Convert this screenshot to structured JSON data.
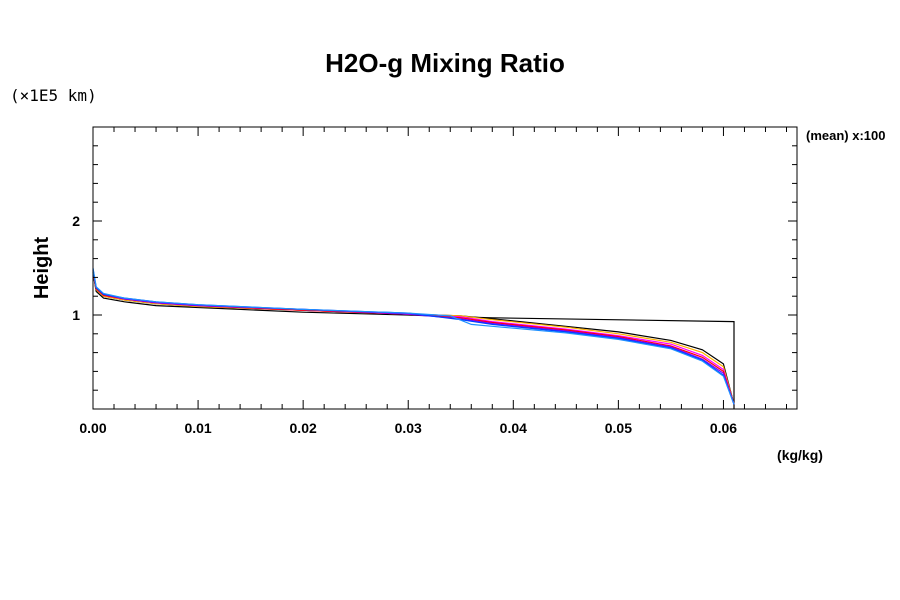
{
  "chart_data": {
    "type": "line",
    "title": "H2O-g Mixing Ratio",
    "ylabel": "Height",
    "yscale_note": "(×1E5 km)",
    "xunit": "(kg/kg)",
    "annotation": "(mean) x:100",
    "xlim": [
      0.0,
      0.067
    ],
    "ylim": [
      0.0,
      3.0
    ],
    "xticks": [
      "0.00",
      "0.01",
      "0.02",
      "0.03",
      "0.04",
      "0.05",
      "0.06"
    ],
    "yticks": [
      "1",
      "2"
    ],
    "grid": false,
    "series_count_note": "ensemble of profiles",
    "reference_profile": {
      "color": "#000000",
      "x": [
        0.0,
        0.0003,
        0.001,
        0.003,
        0.006,
        0.01,
        0.02,
        0.03,
        0.035,
        0.038,
        0.061,
        0.061
      ],
      "y": [
        1.45,
        1.25,
        1.18,
        1.14,
        1.1,
        1.08,
        1.03,
        1.0,
        0.98,
        0.97,
        0.93,
        0.0
      ]
    },
    "series": [
      {
        "color": "#000000",
        "x": [
          0.0,
          0.0003,
          0.001,
          0.003,
          0.006,
          0.01,
          0.02,
          0.03,
          0.035,
          0.038,
          0.045,
          0.05,
          0.055,
          0.058,
          0.06,
          0.061
        ],
        "y": [
          1.45,
          1.27,
          1.2,
          1.16,
          1.12,
          1.09,
          1.05,
          1.01,
          0.99,
          0.96,
          0.88,
          0.82,
          0.73,
          0.63,
          0.48,
          0.05
        ]
      },
      {
        "color": "#ffb000",
        "x": [
          0.0,
          0.0003,
          0.001,
          0.003,
          0.006,
          0.01,
          0.02,
          0.03,
          0.035,
          0.038,
          0.045,
          0.05,
          0.055,
          0.058,
          0.06,
          0.061
        ],
        "y": [
          1.46,
          1.27,
          1.2,
          1.16,
          1.12,
          1.09,
          1.05,
          1.01,
          0.99,
          0.95,
          0.87,
          0.8,
          0.71,
          0.6,
          0.45,
          0.05
        ]
      },
      {
        "color": "#ff00ff",
        "x": [
          0.0,
          0.0003,
          0.001,
          0.003,
          0.006,
          0.01,
          0.02,
          0.03,
          0.035,
          0.038,
          0.045,
          0.05,
          0.055,
          0.058,
          0.06,
          0.061
        ],
        "y": [
          1.47,
          1.28,
          1.21,
          1.17,
          1.13,
          1.1,
          1.05,
          1.01,
          0.98,
          0.93,
          0.85,
          0.78,
          0.69,
          0.57,
          0.42,
          0.05
        ]
      },
      {
        "color": "#ff0000",
        "x": [
          0.0,
          0.0003,
          0.001,
          0.003,
          0.006,
          0.01,
          0.02,
          0.03,
          0.035,
          0.038,
          0.045,
          0.05,
          0.055,
          0.058,
          0.06,
          0.061
        ],
        "y": [
          1.47,
          1.28,
          1.21,
          1.17,
          1.13,
          1.1,
          1.05,
          1.01,
          0.97,
          0.92,
          0.84,
          0.77,
          0.67,
          0.55,
          0.4,
          0.05
        ]
      },
      {
        "color": "#8000ff",
        "x": [
          0.0,
          0.0003,
          0.001,
          0.003,
          0.006,
          0.01,
          0.02,
          0.03,
          0.035,
          0.038,
          0.045,
          0.05,
          0.055,
          0.058,
          0.06,
          0.061
        ],
        "y": [
          1.48,
          1.29,
          1.22,
          1.17,
          1.13,
          1.1,
          1.06,
          1.01,
          0.96,
          0.91,
          0.83,
          0.76,
          0.66,
          0.53,
          0.38,
          0.05
        ]
      },
      {
        "color": "#0040ff",
        "x": [
          0.0,
          0.0003,
          0.001,
          0.003,
          0.006,
          0.01,
          0.02,
          0.03,
          0.035,
          0.038,
          0.045,
          0.05,
          0.055,
          0.058,
          0.06,
          0.061
        ],
        "y": [
          1.49,
          1.29,
          1.22,
          1.18,
          1.14,
          1.11,
          1.06,
          1.02,
          0.95,
          0.9,
          0.82,
          0.75,
          0.65,
          0.52,
          0.36,
          0.05
        ]
      },
      {
        "color": "#1e90ff",
        "x": [
          0.0,
          0.0003,
          0.001,
          0.003,
          0.006,
          0.01,
          0.02,
          0.03,
          0.034,
          0.036,
          0.038,
          0.045,
          0.05,
          0.055,
          0.058,
          0.06,
          0.061
        ],
        "y": [
          1.5,
          1.3,
          1.23,
          1.18,
          1.14,
          1.11,
          1.06,
          1.02,
          0.99,
          0.9,
          0.88,
          0.81,
          0.74,
          0.64,
          0.51,
          0.35,
          0.05
        ]
      }
    ]
  }
}
